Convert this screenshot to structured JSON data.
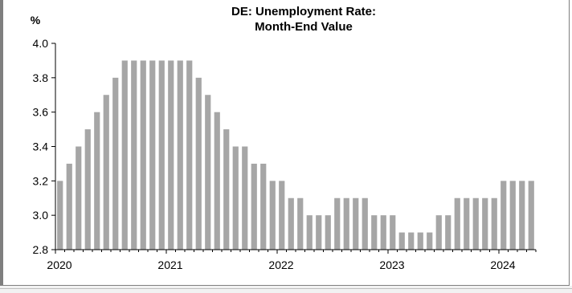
{
  "chart_data": {
    "type": "bar",
    "title": "DE: Unemployment Rate:",
    "subtitle": "Month-End Value",
    "ylabel": "%",
    "xlabel": "",
    "ylim": [
      2.8,
      4.0
    ],
    "yticks": [
      "2.8",
      "3.0",
      "3.2",
      "3.4",
      "3.6",
      "3.8",
      "4.0"
    ],
    "xticks": [
      "2020",
      "2021",
      "2022",
      "2023",
      "2024"
    ],
    "grid": false,
    "bar_color": "#a6a6a6",
    "start": "2020-01",
    "values": [
      3.2,
      3.3,
      3.4,
      3.5,
      3.6,
      3.7,
      3.8,
      3.9,
      3.9,
      3.9,
      3.9,
      3.9,
      3.9,
      3.9,
      3.9,
      3.8,
      3.7,
      3.6,
      3.5,
      3.4,
      3.4,
      3.3,
      3.3,
      3.2,
      3.2,
      3.1,
      3.1,
      3.0,
      3.0,
      3.0,
      3.1,
      3.1,
      3.1,
      3.1,
      3.0,
      3.0,
      3.0,
      2.9,
      2.9,
      2.9,
      2.9,
      3.0,
      3.0,
      3.1,
      3.1,
      3.1,
      3.1,
      3.1,
      3.2,
      3.2,
      3.2,
      3.2
    ]
  }
}
